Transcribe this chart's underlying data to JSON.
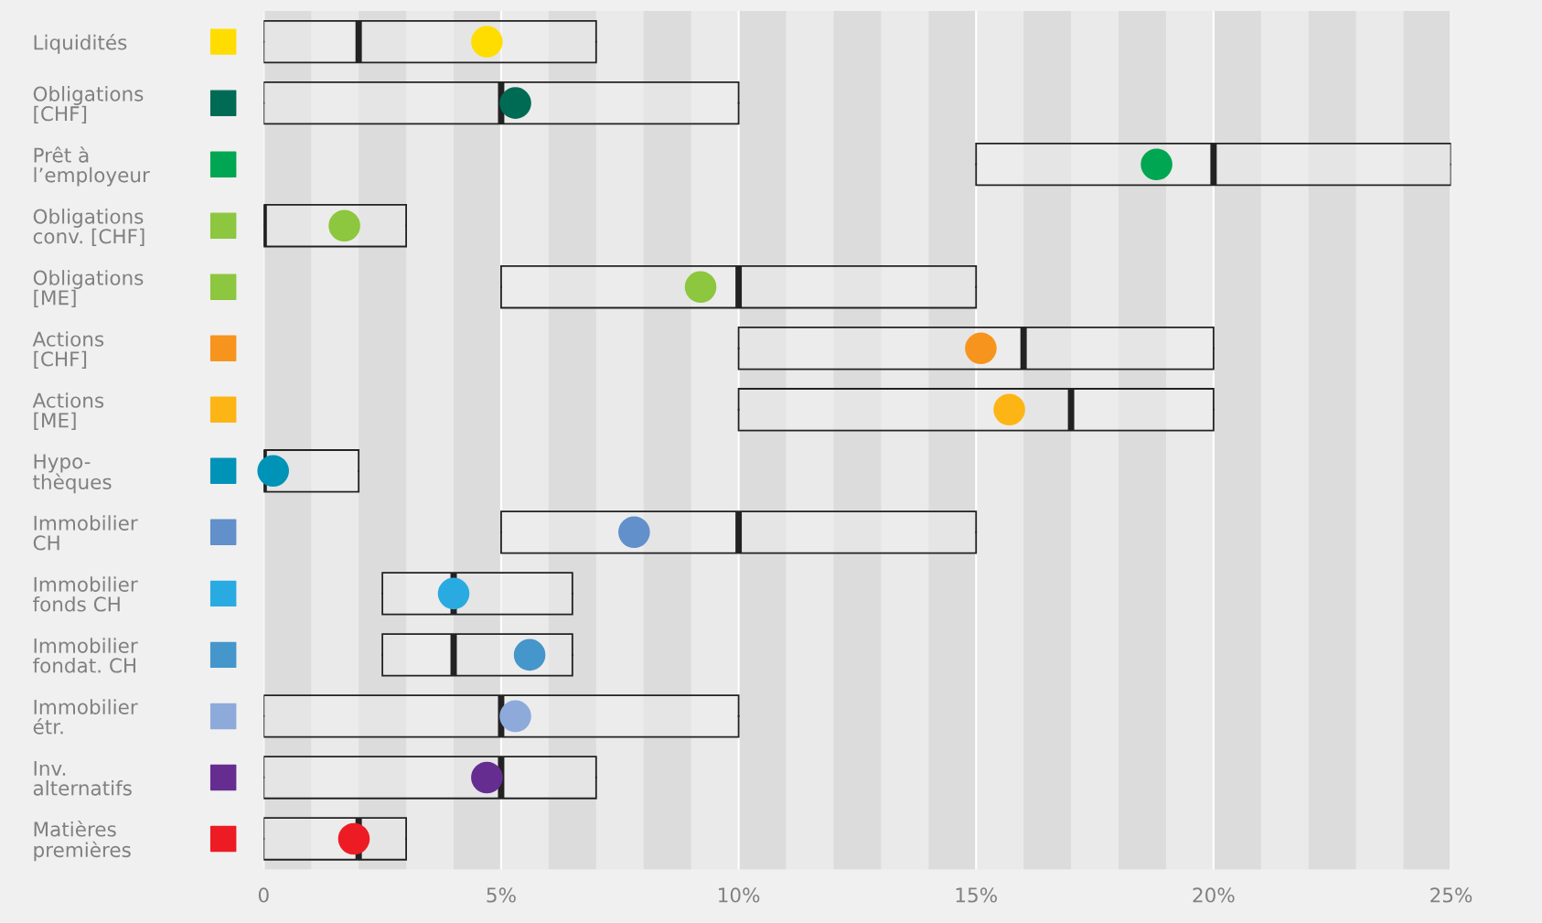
{
  "chart_data": {
    "type": "box",
    "orientation": "horizontal",
    "categories": [
      "Liquidités",
      "Obligations\n[CHF]",
      "Prêt à\nl’employeur",
      "Obligations\nconv. [CHF]",
      "Obligations\n[ME]",
      "Actions\n[CHF]",
      "Actions\n[ME]",
      "Hypo-\nthèques",
      "Immobilier\nCH",
      "Immobilier\nfonds CH",
      "Immobilier\nfondat. CH",
      "Immobilier\nétr.",
      "Inv.\nalternatifs",
      "Matières\npremières"
    ],
    "boxes": [
      {
        "low": 0,
        "q1": 0,
        "median": 2,
        "q3": 7,
        "high": 7
      },
      {
        "low": 0,
        "q1": 0,
        "median": 5,
        "q3": 10,
        "high": 10
      },
      {
        "low": 15,
        "q1": 15,
        "median": 20,
        "q3": 25,
        "high": 25
      },
      {
        "low": 0,
        "q1": 0,
        "median": 0,
        "q3": 3,
        "high": 3
      },
      {
        "low": 5,
        "q1": 5,
        "median": 10,
        "q3": 15,
        "high": 15
      },
      {
        "low": 10,
        "q1": 10,
        "median": 16,
        "q3": 20,
        "high": 20
      },
      {
        "low": 10,
        "q1": 10,
        "median": 17,
        "q3": 20,
        "high": 20
      },
      {
        "low": 0,
        "q1": 0,
        "median": 0,
        "q3": 2,
        "high": 2
      },
      {
        "low": 5,
        "q1": 5,
        "median": 10,
        "q3": 15,
        "high": 15
      },
      {
        "low": 2.5,
        "q1": 2.5,
        "median": 4,
        "q3": 6.5,
        "high": 6.5
      },
      {
        "low": 2.5,
        "q1": 2.5,
        "median": 4,
        "q3": 6.5,
        "high": 6.5
      },
      {
        "low": 0,
        "q1": 0,
        "median": 5,
        "q3": 10,
        "high": 10
      },
      {
        "low": 0,
        "q1": 0,
        "median": 5,
        "q3": 7,
        "high": 7
      },
      {
        "low": 0,
        "q1": 0,
        "median": 2,
        "q3": 3,
        "high": 3
      }
    ],
    "series": [
      {
        "type": "scatter",
        "marker": "circle",
        "values": [
          4.7,
          5.3,
          18.8,
          1.7,
          9.2,
          15.1,
          15.7,
          0.2,
          7.8,
          4.0,
          5.6,
          5.3,
          4.7,
          1.9
        ],
        "colors": [
          "#ffdd00",
          "#006b54",
          "#00a651",
          "#8dc63f",
          "#8dc63f",
          "#f7941d",
          "#fdb515",
          "#0093b8",
          "#6190cb",
          "#29abe2",
          "#4596cb",
          "#8eaadb",
          "#662d91",
          "#ed1c24"
        ]
      }
    ],
    "xlim": [
      0,
      25
    ],
    "xticks": [
      0,
      {
        "value": 5,
        "label": "5%"
      },
      {
        "value": 10,
        "label": "10%"
      },
      {
        "value": 15,
        "label": "15%"
      },
      {
        "value": 20,
        "label": "20%"
      },
      {
        "value": 25,
        "label": "25%"
      }
    ],
    "grid": "x",
    "bands": [
      {
        "axis": "x",
        "from": 0,
        "to": 1,
        "color": "#dcdcdc"
      },
      {
        "axis": "x",
        "from": 2,
        "to": 3,
        "color": "#dcdcdc"
      },
      {
        "axis": "x",
        "from": 4,
        "to": 5,
        "color": "#dcdcdc"
      },
      {
        "axis": "x",
        "from": 6,
        "to": 7,
        "color": "#dcdcdc"
      },
      {
        "axis": "x",
        "from": 8,
        "to": 9,
        "color": "#dcdcdc"
      },
      {
        "axis": "x",
        "from": 10,
        "to": 11,
        "color": "#dcdcdc"
      },
      {
        "axis": "x",
        "from": 12,
        "to": 13,
        "color": "#dcdcdc"
      },
      {
        "axis": "x",
        "from": 14,
        "to": 15,
        "color": "#dcdcdc"
      },
      {
        "axis": "x",
        "from": 16,
        "to": 17,
        "color": "#dcdcdc"
      },
      {
        "axis": "x",
        "from": 18,
        "to": 19,
        "color": "#dcdcdc"
      },
      {
        "axis": "x",
        "from": 20,
        "to": 21,
        "color": "#dcdcdc"
      },
      {
        "axis": "x",
        "from": 22,
        "to": 23,
        "color": "#dcdcdc"
      },
      {
        "axis": "x",
        "from": 24,
        "to": 25,
        "color": "#dcdcdc"
      }
    ]
  }
}
